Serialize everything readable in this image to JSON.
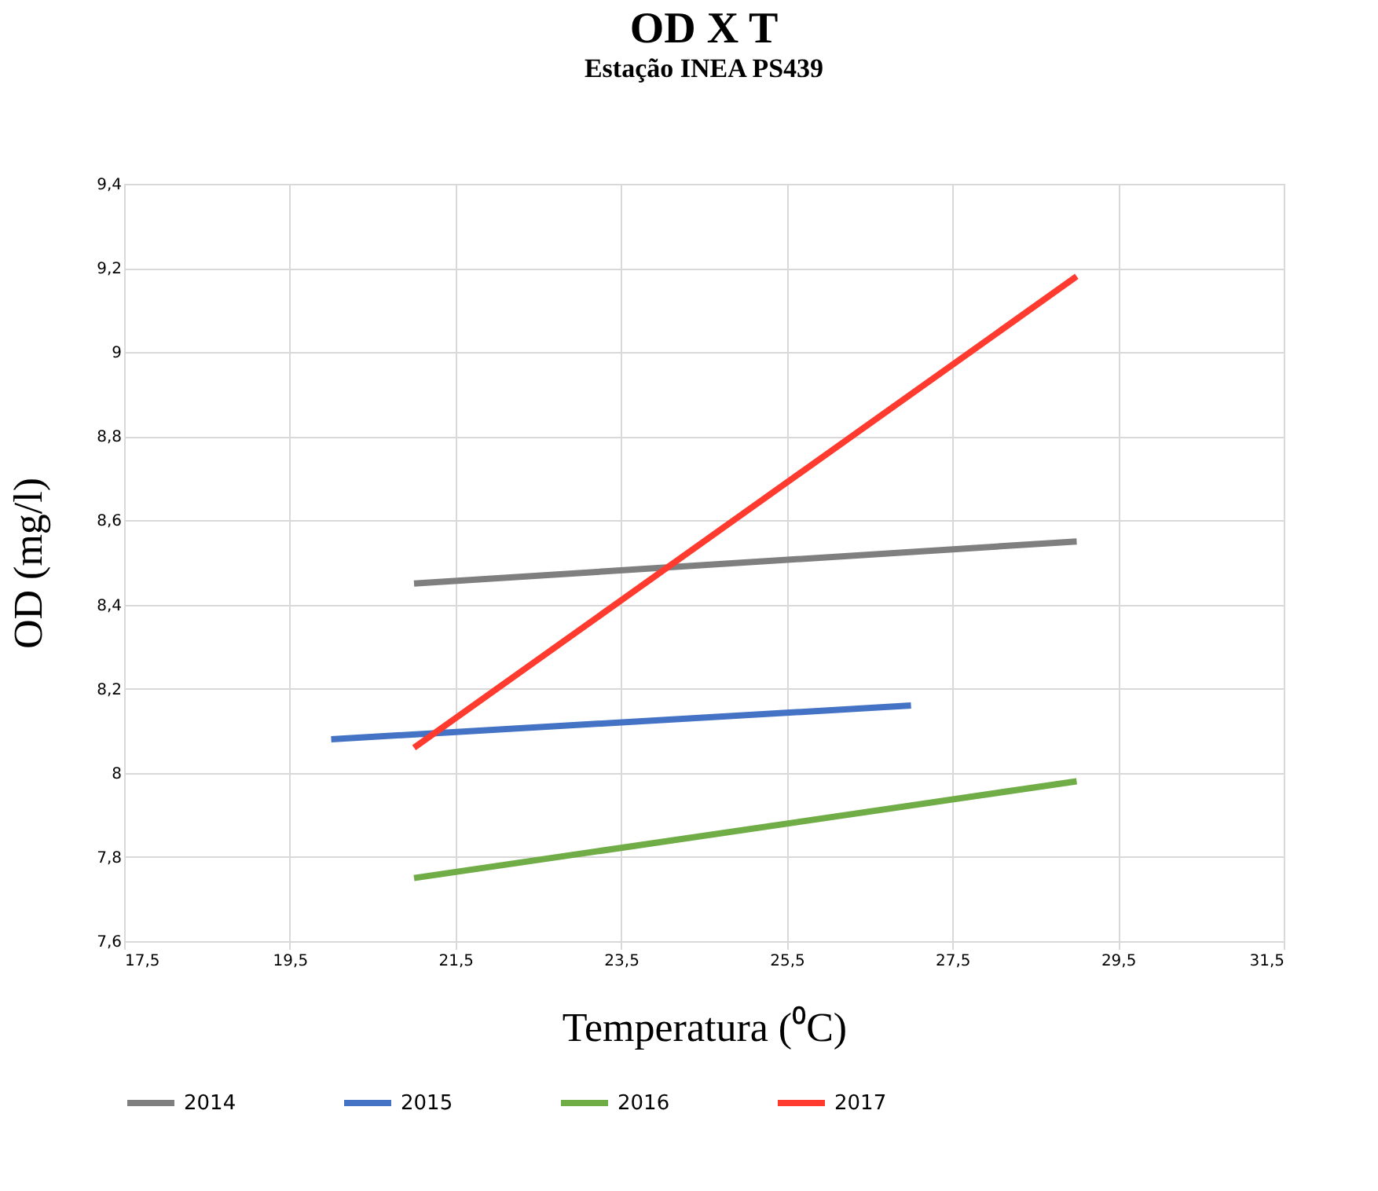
{
  "chart_data": {
    "type": "line",
    "title": "OD X T",
    "subtitle": "Estação INEA PS439",
    "xlabel": "Temperatura (⁰C)",
    "ylabel": "OD (mg/l)",
    "series": [
      {
        "name": "2014",
        "color": "#7f7f7f",
        "x": [
          21,
          29
        ],
        "values": [
          8.45,
          8.55
        ]
      },
      {
        "name": "2015",
        "color": "#4472c4",
        "x": [
          20,
          27
        ],
        "values": [
          8.08,
          8.16
        ]
      },
      {
        "name": "2016",
        "color": "#70ad47",
        "x": [
          21,
          29
        ],
        "values": [
          7.75,
          7.98
        ]
      },
      {
        "name": "2017",
        "color": "#ff3b30",
        "x": [
          21,
          29
        ],
        "values": [
          8.06,
          9.18
        ]
      }
    ],
    "xlim": [
      17.5,
      31.5
    ],
    "xticks": [
      {
        "value": 17.5,
        "label": "17,5"
      },
      {
        "value": 19.5,
        "label": "19,5"
      },
      {
        "value": 21.5,
        "label": "21,5"
      },
      {
        "value": 23.5,
        "label": "23,5"
      },
      {
        "value": 25.5,
        "label": "25,5"
      },
      {
        "value": 27.5,
        "label": "27,5"
      },
      {
        "value": 29.5,
        "label": "29,5"
      },
      {
        "value": 31.5,
        "label": "31,5"
      }
    ],
    "ylim": [
      7.6,
      9.4
    ],
    "yticks": [
      {
        "value": 7.6,
        "label": "7,6"
      },
      {
        "value": 7.8,
        "label": "7,8"
      },
      8,
      {
        "value": 8.2,
        "label": "8,2"
      },
      {
        "value": 8.4,
        "label": "8,4"
      },
      {
        "value": 8.6,
        "label": "8,6"
      },
      {
        "value": 8.8,
        "label": "8,8"
      },
      9,
      {
        "value": 9.2,
        "label": "9,2"
      },
      {
        "value": 9.4,
        "label": "9,4"
      }
    ],
    "grid": true,
    "legend": "bottom",
    "marker": "none",
    "line_style": "solid"
  }
}
